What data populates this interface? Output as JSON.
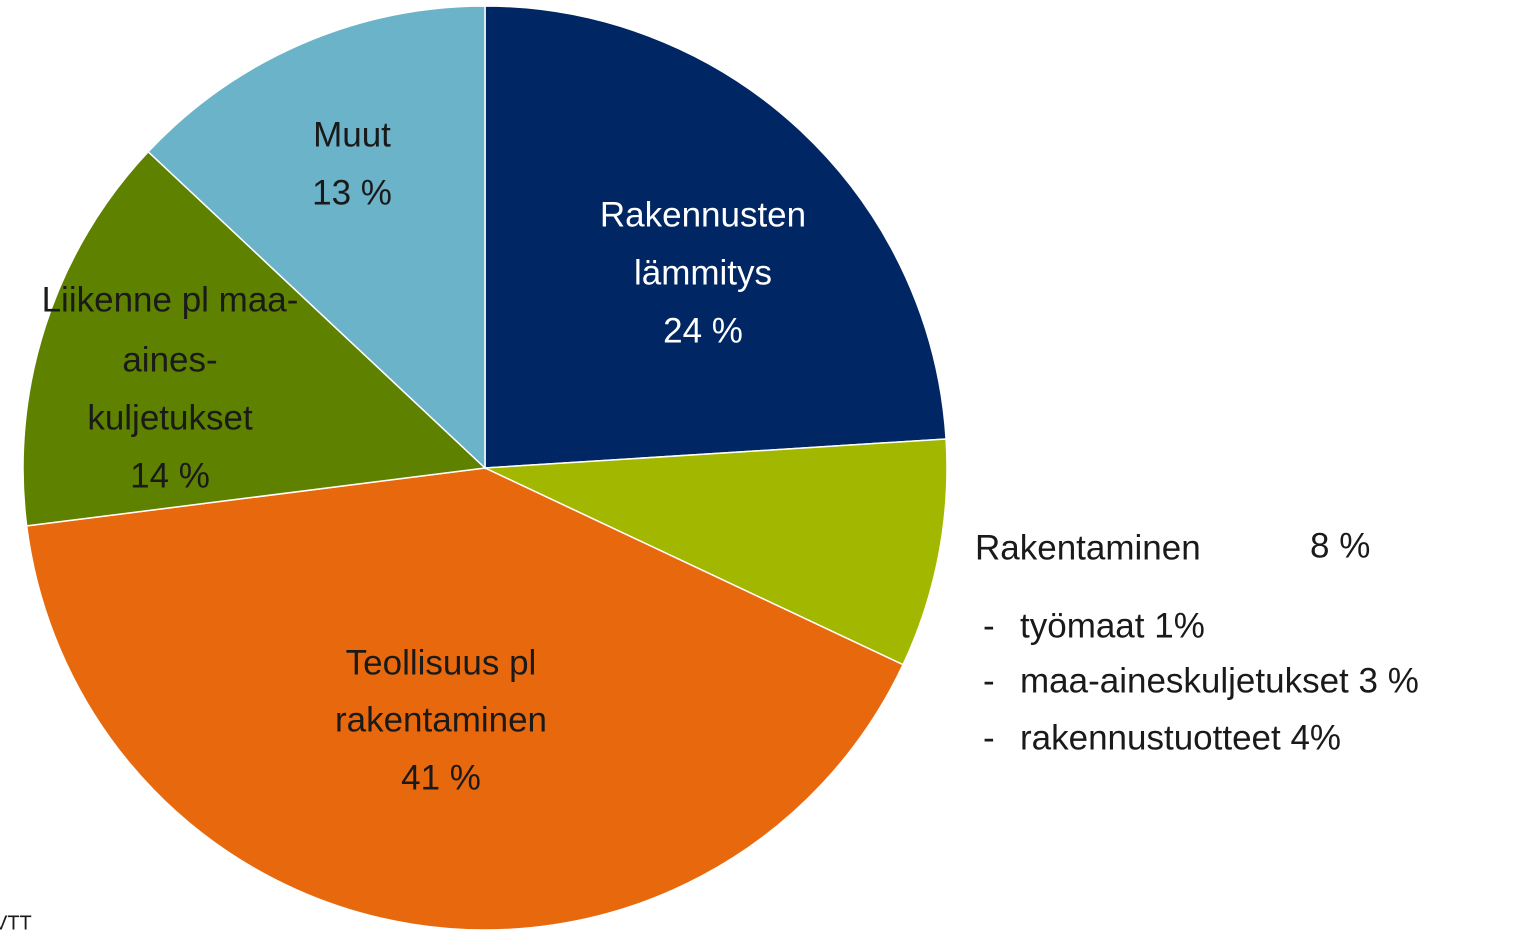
{
  "chart_data": {
    "type": "pie",
    "start_angle": 0,
    "direction": "clockwise",
    "labels": [
      [
        "Rakennusten",
        "lämmitys"
      ],
      [
        "Rakentaminen"
      ],
      [
        "Teollisuus pl",
        "rakentaminen"
      ],
      [
        "Liikenne pl maa-",
        "aines-",
        "kuljetukset"
      ],
      [
        "Muut"
      ]
    ],
    "values": [
      24,
      8,
      41,
      14,
      13
    ],
    "value_labels": [
      "24 %",
      "8 %",
      "41 %",
      "14 %",
      "13 %"
    ],
    "colors": [
      "#002663",
      "#a2b700",
      "#e8690d",
      "#5f8100",
      "#6ab3c8"
    ],
    "breakdown": [
      "työmaat 1%",
      "maa-aineskuljetukset 3 %",
      "rakennustuotteet 4%"
    ],
    "source": "VTT"
  }
}
